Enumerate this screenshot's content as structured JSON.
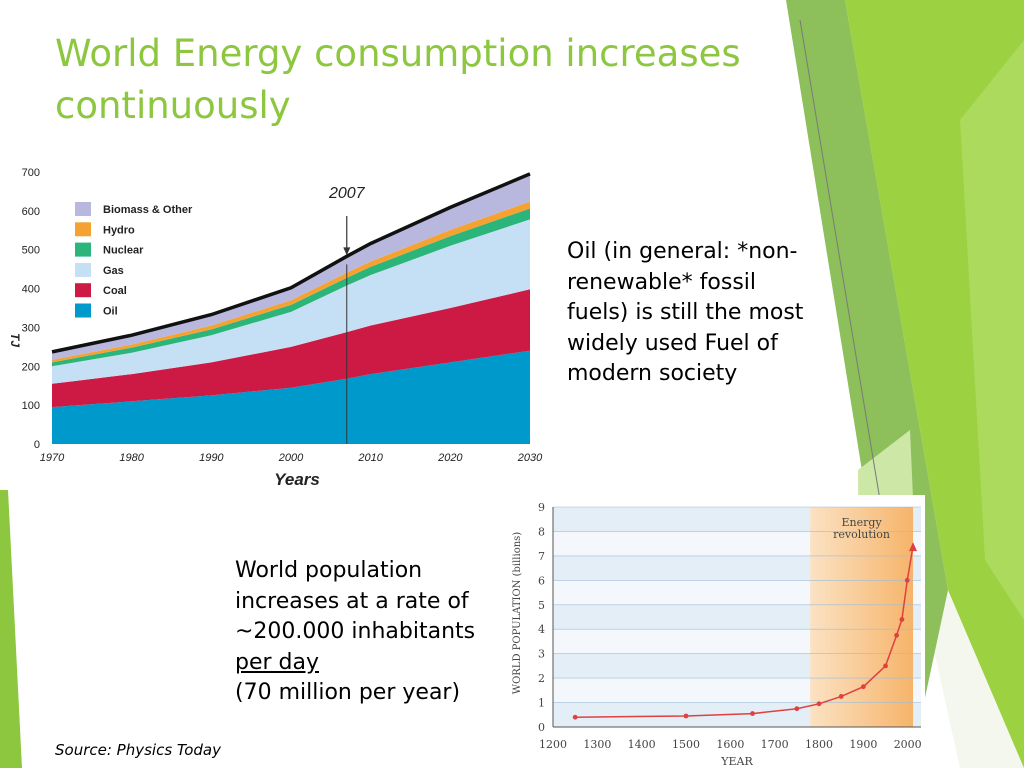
{
  "slide": {
    "title": "World Energy consumption increases continuously",
    "oil_text": "Oil (in general: *non-renewable* fossil fuels) is still the most widely used Fuel of modern society",
    "population_text": {
      "line1": "World population",
      "line2": "increases at a rate of",
      "line3": "~200.000 inhabitants",
      "line4": "per day",
      "line5": "(70 million per year)"
    },
    "source": "Source: Physics Today",
    "colors": {
      "accent_green": "#8dc63f",
      "title_green": "#8dc63f"
    }
  },
  "chart_data": [
    {
      "type": "area",
      "stacked": true,
      "xlabel": "Years",
      "ylabel": "TJ",
      "x": [
        1970,
        1980,
        1990,
        2000,
        2007,
        2010,
        2020,
        2030
      ],
      "xticks": [
        "1970",
        "1980",
        "1990",
        "2000",
        "2010",
        "2020",
        "2030"
      ],
      "yticks": [
        "0",
        "100",
        "200",
        "300",
        "400",
        "500",
        "600",
        "700"
      ],
      "xlim": [
        1970,
        2030
      ],
      "ylim": [
        0,
        700
      ],
      "annotation": {
        "label": "2007",
        "x": 2007
      },
      "legend_position": "top-left",
      "series": [
        {
          "name": "Oil",
          "color": "#0099cc",
          "values": [
            95,
            110,
            125,
            145,
            168,
            180,
            210,
            240
          ]
        },
        {
          "name": "Coal",
          "color": "#cc1a44",
          "values": [
            60,
            70,
            85,
            105,
            120,
            125,
            140,
            158
          ]
        },
        {
          "name": "Gas",
          "color": "#c5dff4",
          "values": [
            45,
            55,
            70,
            90,
            120,
            130,
            160,
            180
          ]
        },
        {
          "name": "Nuclear",
          "color": "#2bb57a",
          "values": [
            10,
            13,
            15,
            18,
            20,
            21,
            25,
            28
          ]
        },
        {
          "name": "Hydro",
          "color": "#f5a233",
          "values": [
            7,
            8,
            10,
            12,
            13,
            14,
            16,
            18
          ]
        },
        {
          "name": "Biomass & Other",
          "color": "#b8b8df",
          "values": [
            20,
            24,
            28,
            32,
            42,
            46,
            58,
            71
          ]
        }
      ]
    },
    {
      "type": "line",
      "xlabel": "YEAR",
      "ylabel": "WORLD POPULATION (billions)",
      "xticks": [
        "1200",
        "1300",
        "1400",
        "1500",
        "1600",
        "1700",
        "1800",
        "1900",
        "2000"
      ],
      "yticks": [
        "0",
        "1",
        "2",
        "3",
        "4",
        "5",
        "6",
        "7",
        "8",
        "9"
      ],
      "xlim": [
        1200,
        2030
      ],
      "ylim": [
        0,
        9
      ],
      "annotation": {
        "line1": "Energy",
        "line2": "revolution",
        "x_start": 1780,
        "x_end": 2012
      },
      "x": [
        1250,
        1500,
        1650,
        1750,
        1800,
        1850,
        1900,
        1950,
        1975,
        1987,
        1999,
        2012
      ],
      "y": [
        0.4,
        0.45,
        0.55,
        0.75,
        0.95,
        1.25,
        1.65,
        2.5,
        3.75,
        4.4,
        6.0,
        7.4
      ],
      "line_color": "#e04040"
    }
  ]
}
